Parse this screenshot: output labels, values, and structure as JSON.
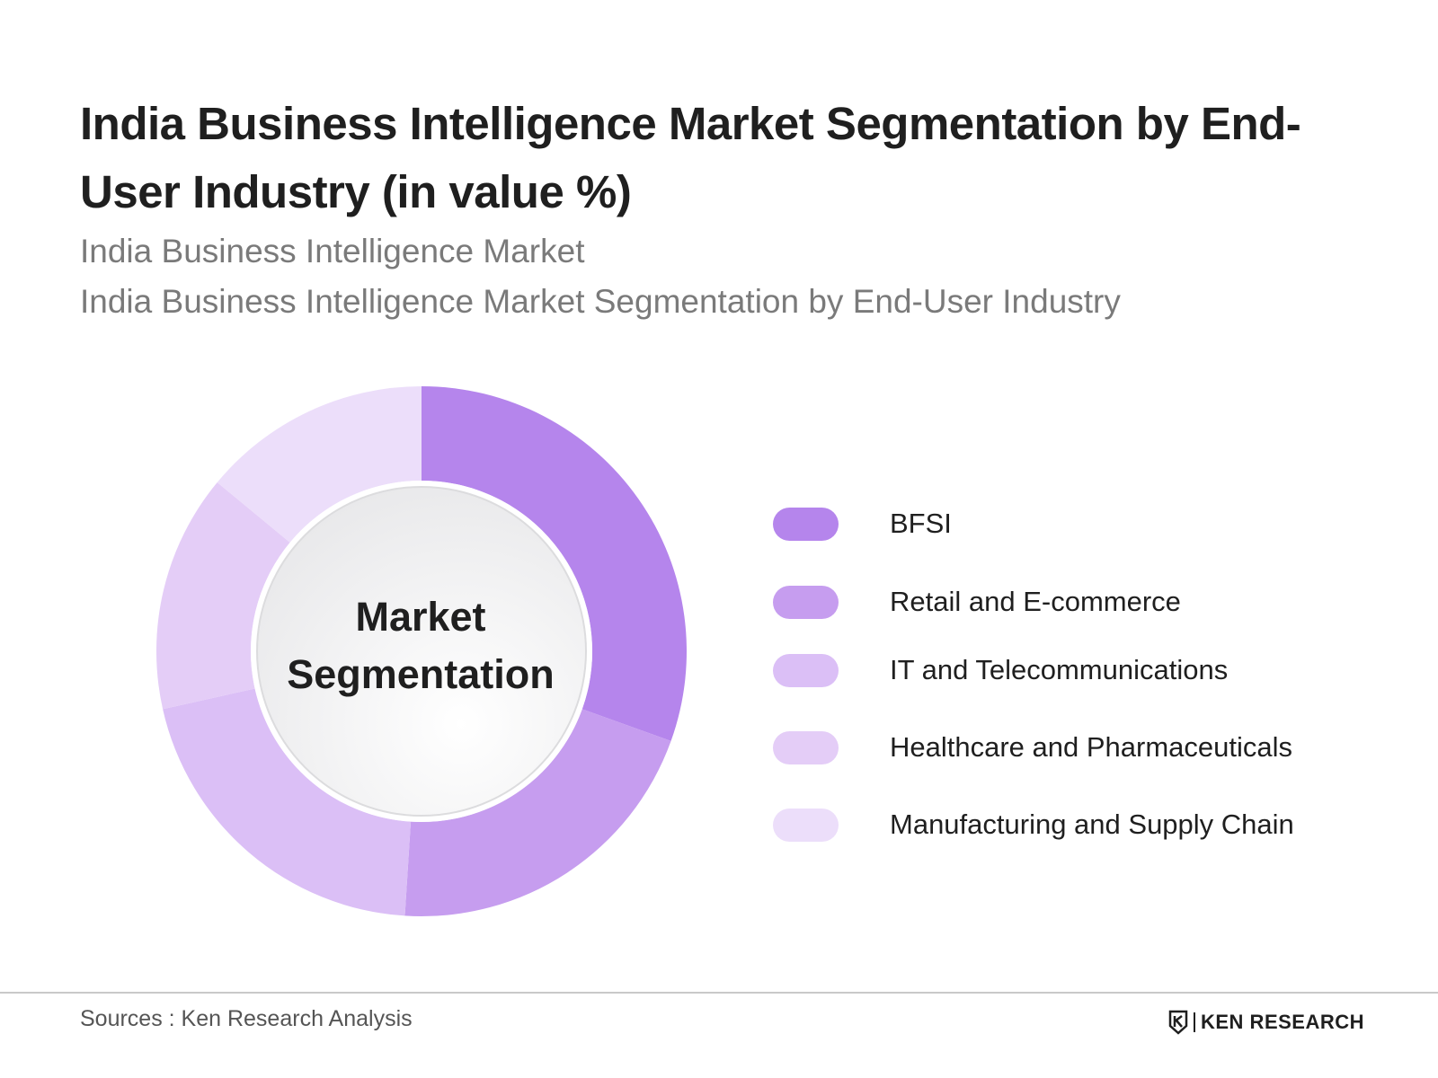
{
  "chart_data": {
    "type": "pie",
    "title": "India Business Intelligence Market Segmentation by End-User Industry (in value %)",
    "subtitles": [
      "India Business Intelligence Market",
      "India Business Intelligence Market Segmentation by End-User Industry"
    ],
    "center_label": [
      "Market",
      "Segmentation"
    ],
    "legend_position": "right",
    "categories": [
      "BFSI",
      "Retail and E-commerce",
      "IT and Telecommunications",
      "Healthcare and Pharmaceuticals",
      "Manufacturing and Supply Chain"
    ],
    "values": [
      30.5,
      20.5,
      20.5,
      14.5,
      14
    ],
    "colors": [
      "#b585ec",
      "#c69def",
      "#dbbff6",
      "#e4cdf7",
      "#ecdefa"
    ]
  },
  "footer": {
    "sources": "Sources : Ken Research Analysis",
    "brand": "KEN RESEARCH"
  }
}
